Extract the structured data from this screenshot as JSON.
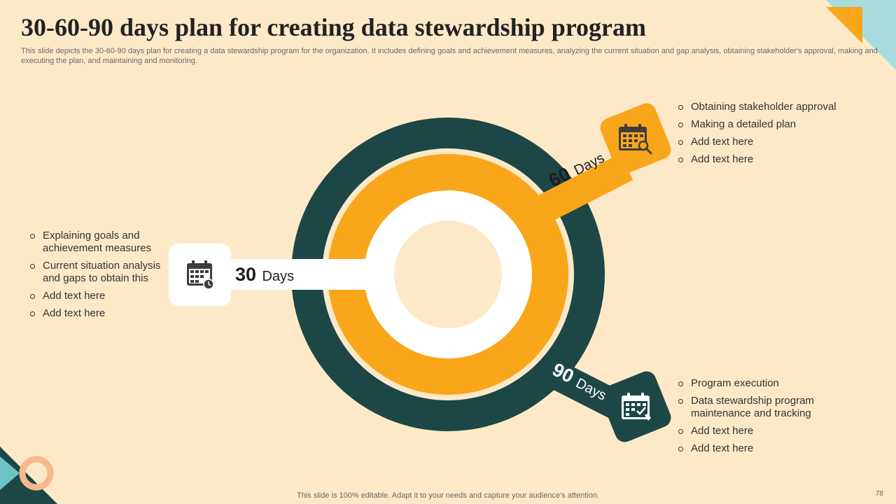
{
  "slide": {
    "title": "30-60-90 days plan for creating data stewardship program",
    "subtitle": "This slide depicts the 30-60-90 days plan for creating a data stewardship program for the organization. It includes defining goals and achievement measures, analyzing the current situation and gap analysis, obtaining stakeholder's approval, making and executing the plan, and maintaining and monitoring.",
    "footer": "This slide is 100% editable. Adapt it to your needs and capture your audience's attention.",
    "page_number": "78"
  },
  "colors": {
    "background": "#fde9c8",
    "teal": "#1c4746",
    "orange": "#f9a61a",
    "white": "#ffffff",
    "accent_blue": "#a8dcdc",
    "accent_peach": "#f7b98c"
  },
  "phases": [
    {
      "number": "30",
      "unit": "Days",
      "icon": "calendar-clock-icon",
      "items": [
        "Explaining goals and achievement measures",
        "Current situation analysis and gaps to obtain this",
        "Add text here",
        "Add text here"
      ]
    },
    {
      "number": "60",
      "unit": "Days",
      "icon": "calendar-search-icon",
      "items": [
        "Obtaining stakeholder approval",
        "Making a detailed plan",
        "Add text here",
        "Add text here"
      ]
    },
    {
      "number": "90",
      "unit": "Days",
      "icon": "calendar-check-icon",
      "items": [
        "Program execution",
        "Data stewardship program maintenance and tracking",
        "Add text here",
        "Add text here"
      ]
    }
  ]
}
